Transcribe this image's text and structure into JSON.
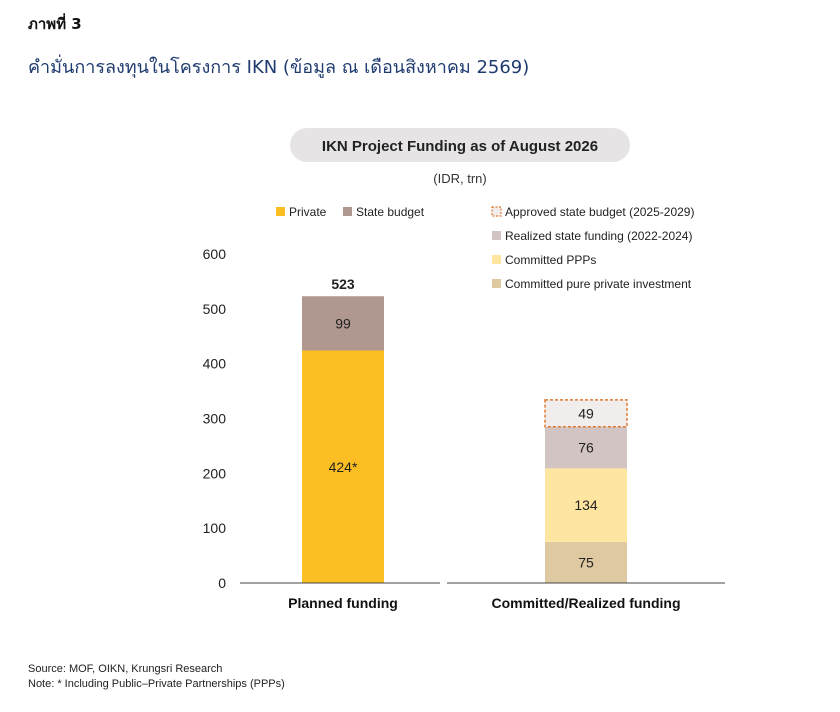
{
  "header": {
    "figure_label": "ภาพที่ 3",
    "title": "คำมั่นการลงทุนในโครงการ IKN (ข้อมูล ณ เดือนสิงหาคม 2569)"
  },
  "footer": {
    "source": "Source: MOF, OIKN, Krungsri Research",
    "note": "Note: * Including Public–Private Partnerships (PPPs)"
  },
  "chart_data": {
    "type": "bar",
    "stacked": true,
    "title": "IKN Project Funding as of August 2026",
    "subtitle": "(IDR, trn)",
    "ylim": [
      0,
      600
    ],
    "yticks": [
      0,
      100,
      200,
      300,
      400,
      500,
      600
    ],
    "grid": false,
    "categories": [
      "Planned funding",
      "Committed/Realized funding"
    ],
    "bars": [
      {
        "category": "Planned funding",
        "total_label": "523",
        "segments": [
          {
            "series": "Private",
            "value": 424,
            "label": "424*",
            "color": "#fbbf24"
          },
          {
            "series": "State budget",
            "value": 99,
            "label": "99",
            "color": "#b09890"
          }
        ]
      },
      {
        "category": "Committed/Realized funding",
        "segments": [
          {
            "series": "Committed pure private investment",
            "value": 75,
            "label": "75",
            "color": "#dfc9a0"
          },
          {
            "series": "Committed PPPs",
            "value": 134,
            "label": "134",
            "color": "#ffe6a0"
          },
          {
            "series": "Realized state funding (2022-2024)",
            "value": 76,
            "label": "76",
            "color": "#d3c4c4"
          },
          {
            "series": "Approved state budget (2025-2029)",
            "value": 49,
            "label": "49",
            "color": "#f1eded",
            "dashed_border": "#e07a2e"
          }
        ]
      }
    ],
    "legend_left": [
      {
        "name": "Private",
        "color": "#fbbf24"
      },
      {
        "name": "State budget",
        "color": "#b09890"
      }
    ],
    "legend_right": [
      {
        "name": "Approved state budget (2025-2029)",
        "color": "#f1eded",
        "dashed_border": "#e07a2e"
      },
      {
        "name": "Realized state funding (2022-2024)",
        "color": "#d3c4c4"
      },
      {
        "name": "Committed PPPs",
        "color": "#ffe6a0"
      },
      {
        "name": "Committed pure private investment",
        "color": "#dfc9a0"
      }
    ]
  }
}
